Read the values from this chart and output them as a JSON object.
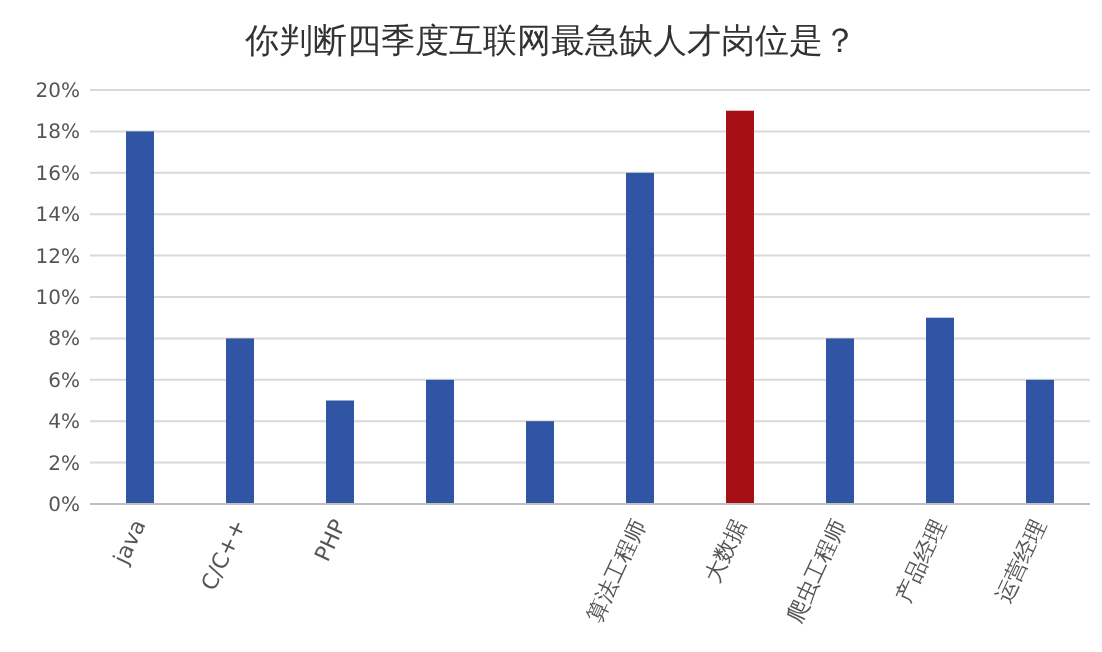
{
  "chart_data": {
    "type": "bar",
    "title": "你判断四季度互联网最急缺人才岗位是？",
    "categories": [
      "java",
      "C/C++",
      "PHP",
      null,
      null,
      "算法工程师",
      "大数据",
      "爬虫工程师",
      "产品经理",
      "运营经理"
    ],
    "values": [
      18,
      8,
      5,
      6,
      4,
      16,
      19,
      8,
      9,
      6
    ],
    "colors": [
      "#2f55a4",
      "#2f55a4",
      "#2f55a4",
      "#2f55a4",
      "#2f55a4",
      "#2f55a4",
      "#a50f15",
      "#2f55a4",
      "#2f55a4",
      "#2f55a4"
    ],
    "ylim": [
      0,
      20
    ],
    "yticks": [
      {
        "value": 0,
        "label": "0%"
      },
      {
        "value": 2,
        "label": "2%"
      },
      {
        "value": 4,
        "label": "4%"
      },
      {
        "value": 6,
        "label": "6%"
      },
      {
        "value": 8,
        "label": "8%"
      },
      {
        "value": 10,
        "label": "10%"
      },
      {
        "value": 12,
        "label": "12%"
      },
      {
        "value": 14,
        "label": "14%"
      },
      {
        "value": 16,
        "label": "16%"
      },
      {
        "value": 18,
        "label": "18%"
      },
      {
        "value": 20,
        "label": "20%"
      }
    ],
    "grid": "y"
  }
}
